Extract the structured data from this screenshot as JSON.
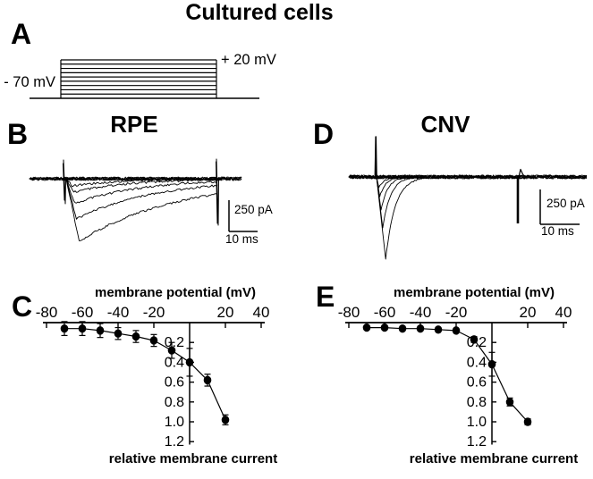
{
  "figure": {
    "title": "Cultured cells",
    "panel_a": {
      "label": "A",
      "holding_potential_label": "- 70 mV",
      "step_potential_label": "+ 20 mV"
    },
    "panel_b": {
      "label": "B",
      "title": "RPE",
      "scalebar_current": "250 pA",
      "scalebar_time": "10 ms"
    },
    "panel_c": {
      "label": "C"
    },
    "panel_d": {
      "label": "D",
      "title": "CNV",
      "scalebar_current": "250 pA",
      "scalebar_time": "10 ms"
    },
    "panel_e": {
      "label": "E"
    }
  },
  "chart_data": [
    {
      "panel": "C",
      "region": "RPE",
      "type": "scatter",
      "xlabel": "membrane potential (mV)",
      "ylabel": "relative membrane current",
      "x_axis_position": "top",
      "y_axis_direction": "downward",
      "xlim": [
        -82,
        42
      ],
      "ylim": [
        0,
        1.23
      ],
      "x_tick_values": [
        -80,
        -60,
        -40,
        -20,
        20,
        40
      ],
      "x_tick_labels": [
        "-80",
        "-60",
        "-40",
        "-20",
        "20",
        "40"
      ],
      "y_tick_values": [
        0.2,
        0.4,
        0.6,
        0.8,
        1.0,
        1.2
      ],
      "y_tick_labels": [
        "0.2",
        "0.4",
        "0.6",
        "0.8",
        "1.0",
        "1.2"
      ],
      "x": [
        -70,
        -60,
        -50,
        -40,
        -30,
        -20,
        -10,
        0,
        10,
        20
      ],
      "y": [
        0.06,
        0.06,
        0.08,
        0.11,
        0.14,
        0.18,
        0.28,
        0.4,
        0.58,
        0.98
      ],
      "yerr": [
        0.07,
        0.07,
        0.07,
        0.06,
        0.06,
        0.06,
        0.08,
        0.14,
        0.06,
        0.05
      ],
      "marker": "filled-circle"
    },
    {
      "panel": "E",
      "region": "CNV",
      "type": "scatter",
      "xlabel": "membrane potential (mV)",
      "ylabel": "relative membrane current",
      "x_axis_position": "top",
      "y_axis_direction": "downward",
      "xlim": [
        -82,
        42
      ],
      "ylim": [
        0,
        1.23
      ],
      "x_tick_values": [
        -80,
        -60,
        -40,
        -20,
        20,
        40
      ],
      "x_tick_labels": [
        "-80",
        "-60",
        "-40",
        "-20",
        "20",
        "40"
      ],
      "y_tick_values": [
        0.2,
        0.4,
        0.6,
        0.8,
        1.0,
        1.2
      ],
      "y_tick_labels": [
        "0.2",
        "0.4",
        "0.6",
        "0.8",
        "1.0",
        "1.2"
      ],
      "x": [
        -70,
        -60,
        -50,
        -40,
        -30,
        -20,
        -10,
        0,
        10,
        20
      ],
      "y": [
        0.05,
        0.05,
        0.06,
        0.06,
        0.07,
        0.08,
        0.17,
        0.42,
        0.8,
        1.0
      ],
      "yerr": [
        0.02,
        0.02,
        0.02,
        0.02,
        0.02,
        0.02,
        0.03,
        0.12,
        0.04,
        0.03
      ],
      "marker": "filled-circle"
    }
  ]
}
